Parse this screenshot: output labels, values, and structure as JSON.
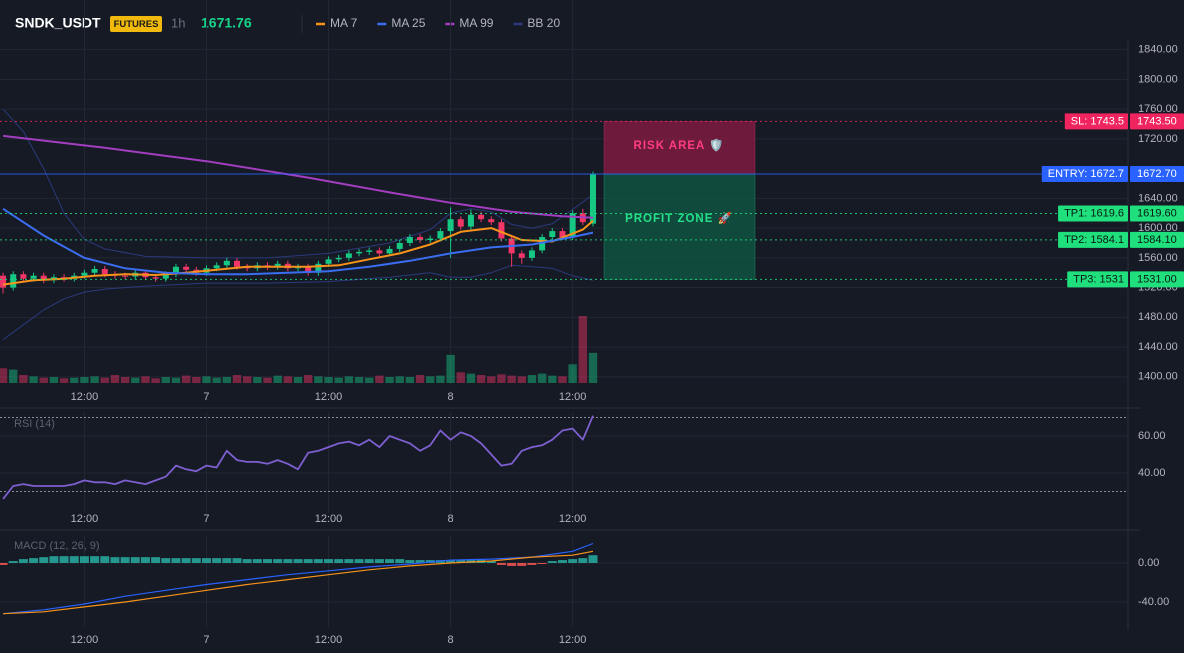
{
  "chart_data": [
    {
      "type": "candlestick",
      "title": "SNDK_USDT",
      "badge": "FUTURES",
      "interval": "1h",
      "last_price": 1671.76,
      "xlim": [
        -0.3,
        110.6
      ],
      "xticks": [
        {
          "value": 8,
          "label": "12:00"
        },
        {
          "value": 20,
          "label": "7"
        },
        {
          "value": 32,
          "label": "12:00"
        },
        {
          "value": 44,
          "label": "8"
        },
        {
          "value": 56,
          "label": "12:00"
        }
      ],
      "ylim": [
        1389,
        1853
      ],
      "yticks": [
        {
          "value": 1400,
          "label": "1400.00"
        },
        {
          "value": 1440,
          "label": "1440.00"
        },
        {
          "value": 1480,
          "label": "1480.00"
        },
        {
          "value": 1520,
          "label": "1520.00"
        },
        {
          "value": 1560,
          "label": "1560.00"
        },
        {
          "value": 1600,
          "label": "1600.00"
        },
        {
          "value": 1640,
          "label": "1640.00"
        },
        {
          "value": 1720,
          "label": "1720.00"
        },
        {
          "value": 1760,
          "label": "1760.00"
        },
        {
          "value": 1800,
          "label": "1800.00"
        },
        {
          "value": 1840,
          "label": "1840.00"
        }
      ],
      "up_color": "#17c784",
      "down_color": "#f23668",
      "open": [
        1536,
        1520,
        1538,
        1532,
        1536,
        1530,
        1534,
        1532,
        1536,
        1540,
        1545,
        1538,
        1536,
        1535,
        1540,
        1534,
        1532,
        1538,
        1548,
        1544,
        1540,
        1546,
        1550,
        1556,
        1548,
        1546,
        1550,
        1548,
        1552,
        1546,
        1548,
        1540,
        1552,
        1558,
        1560,
        1566,
        1568,
        1570,
        1566,
        1572,
        1580,
        1588,
        1584,
        1586,
        1596,
        1612,
        1602,
        1618,
        1612,
        1608,
        1586,
        1566,
        1560,
        1570,
        1588,
        1596,
        1588,
        1620,
        1606
      ],
      "high": [
        1540,
        1542,
        1542,
        1540,
        1540,
        1538,
        1538,
        1540,
        1544,
        1549,
        1549,
        1542,
        1540,
        1544,
        1544,
        1538,
        1542,
        1552,
        1552,
        1548,
        1550,
        1554,
        1560,
        1560,
        1552,
        1554,
        1554,
        1556,
        1556,
        1552,
        1552,
        1556,
        1562,
        1564,
        1570,
        1572,
        1574,
        1574,
        1576,
        1584,
        1592,
        1592,
        1590,
        1600,
        1628,
        1616,
        1625,
        1622,
        1616,
        1612,
        1590,
        1570,
        1574,
        1592,
        1600,
        1600,
        1624,
        1626,
        1676
      ],
      "low": [
        1512,
        1516,
        1528,
        1528,
        1526,
        1526,
        1528,
        1528,
        1532,
        1536,
        1534,
        1532,
        1531,
        1531,
        1530,
        1528,
        1528,
        1534,
        1540,
        1536,
        1536,
        1542,
        1546,
        1544,
        1542,
        1542,
        1544,
        1544,
        1542,
        1542,
        1536,
        1536,
        1548,
        1554,
        1556,
        1562,
        1564,
        1562,
        1562,
        1568,
        1576,
        1580,
        1580,
        1582,
        1560,
        1598,
        1598,
        1608,
        1604,
        1582,
        1548,
        1552,
        1556,
        1566,
        1584,
        1584,
        1584,
        1604,
        1602
      ],
      "close": [
        1520,
        1538,
        1532,
        1536,
        1530,
        1534,
        1532,
        1536,
        1540,
        1545,
        1538,
        1536,
        1535,
        1540,
        1534,
        1532,
        1538,
        1548,
        1544,
        1540,
        1546,
        1550,
        1556,
        1548,
        1546,
        1550,
        1548,
        1552,
        1546,
        1548,
        1540,
        1552,
        1558,
        1560,
        1566,
        1568,
        1570,
        1566,
        1572,
        1580,
        1588,
        1584,
        1586,
        1596,
        1612,
        1602,
        1618,
        1612,
        1608,
        1586,
        1566,
        1560,
        1570,
        1588,
        1596,
        1588,
        1620,
        1608,
        1672.7
      ],
      "volume": [
        22,
        20,
        12,
        10,
        8,
        9,
        7,
        8,
        9,
        10,
        8,
        12,
        9,
        8,
        10,
        7,
        9,
        8,
        11,
        9,
        10,
        8,
        9,
        12,
        10,
        9,
        8,
        11,
        10,
        9,
        12,
        10,
        9,
        8,
        10,
        9,
        8,
        11,
        9,
        10,
        9,
        12,
        10,
        11,
        42,
        16,
        14,
        12,
        10,
        13,
        11,
        10,
        12,
        14,
        11,
        10,
        28,
        100,
        45
      ],
      "series": [
        {
          "name": "MA 7",
          "color": "#f7931a",
          "x": [
            0,
            3,
            6,
            9,
            12,
            15,
            18,
            21,
            24,
            27,
            30,
            33,
            36,
            39,
            42,
            45,
            48,
            51,
            54,
            57,
            58
          ],
          "values": [
            1524,
            1530,
            1532,
            1536,
            1538,
            1537,
            1540,
            1544,
            1548,
            1548,
            1548,
            1550,
            1558,
            1566,
            1578,
            1595,
            1600,
            1584,
            1582,
            1598,
            1610
          ]
        },
        {
          "name": "MA 25",
          "color": "#3a6df0",
          "x": [
            0,
            4,
            8,
            12,
            16,
            20,
            24,
            28,
            32,
            36,
            40,
            44,
            48,
            52,
            56,
            58
          ],
          "values": [
            1626,
            1590,
            1560,
            1546,
            1540,
            1538,
            1538,
            1540,
            1542,
            1548,
            1556,
            1566,
            1574,
            1578,
            1588,
            1594
          ]
        },
        {
          "name": "MA 99",
          "color": "#a23ebf",
          "x": [
            0,
            10,
            20,
            30,
            38,
            44,
            50,
            55,
            58
          ],
          "values": [
            1724,
            1708,
            1690,
            1668,
            1648,
            1634,
            1622,
            1616,
            1614
          ]
        },
        {
          "name": "BB 20",
          "color": "#2b3a7c",
          "x": [
            0,
            2,
            4,
            6,
            8,
            10,
            14,
            20,
            26,
            32,
            38,
            42,
            44,
            46,
            48,
            50,
            52,
            54,
            56,
            58
          ],
          "upper": [
            1760,
            1730,
            1680,
            1620,
            1585,
            1572,
            1562,
            1560,
            1560,
            1566,
            1580,
            1598,
            1620,
            1626,
            1622,
            1605,
            1600,
            1606,
            1625,
            1645
          ],
          "lower": [
            1450,
            1470,
            1490,
            1505,
            1514,
            1518,
            1522,
            1526,
            1526,
            1528,
            1534,
            1540,
            1534,
            1534,
            1540,
            1550,
            1548,
            1546,
            1536,
            1530
          ]
        }
      ],
      "levels": [
        {
          "label": "SL: 1743.5",
          "value": 1743.5,
          "value_label": "1743.50",
          "color": "#f0245e",
          "text_color": "#ffffff",
          "dashed": true
        },
        {
          "label": "ENTRY: 1672.7",
          "value": 1672.7,
          "value_label": "1672.70",
          "color": "#2962ff",
          "text_color": "#ffffff",
          "dashed": false
        },
        {
          "label": "TP1: 1619.6",
          "value": 1619.6,
          "value_label": "1619.60",
          "color": "#1fe07c",
          "text_color": "#0b1a12",
          "dashed": true
        },
        {
          "label": "TP2: 1584.1",
          "value": 1584.1,
          "value_label": "1584.10",
          "color": "#1fe07c",
          "text_color": "#0b1a12",
          "dashed": true
        },
        {
          "label": "TP3: 1531",
          "value": 1531,
          "value_label": "1531.00",
          "color": "#1fe07c",
          "text_color": "#0b1a12",
          "dashed": true
        }
      ],
      "zones": [
        {
          "label": "RISK AREA 🛡️",
          "from": 1743.5,
          "to": 1672.7,
          "color": "#8c1a44",
          "text_color": "#ff3d7f"
        },
        {
          "label": "PROFIT ZONE 🚀",
          "from": 1672.7,
          "to": 1531,
          "color": "#0f5a44",
          "text_color": "#24e08a"
        }
      ]
    },
    {
      "type": "line",
      "title": "RSI (14)",
      "color": "#7e5fd0",
      "xlim": [
        -0.3,
        110.6
      ],
      "xticks": [
        {
          "value": 8,
          "label": "12:00"
        },
        {
          "value": 20,
          "label": "7"
        },
        {
          "value": 32,
          "label": "12:00"
        },
        {
          "value": 44,
          "label": "8"
        },
        {
          "value": 56,
          "label": "12:00"
        }
      ],
      "ylim": [
        18.4,
        73
      ],
      "yticks": [
        {
          "value": 40,
          "label": "40.00"
        },
        {
          "value": 60,
          "label": "60.00"
        }
      ],
      "levels": [
        70,
        30
      ],
      "values": [
        26,
        33,
        34,
        33,
        33,
        33,
        33,
        34,
        36,
        35,
        35,
        34,
        36,
        35,
        34,
        36,
        38,
        44,
        42,
        41,
        44,
        43,
        52,
        47,
        46,
        46,
        45,
        47,
        45,
        42,
        51,
        52,
        54,
        56,
        57,
        55,
        58,
        54,
        60,
        58,
        56,
        52,
        55,
        63,
        58,
        62,
        60,
        56,
        50,
        44,
        45,
        52,
        54,
        55,
        58,
        63,
        64,
        58,
        71
      ]
    },
    {
      "type": "bar",
      "title": "MACD (12, 26, 9)",
      "up_color": "#26a69a",
      "down_color": "#ef5350",
      "xlim": [
        -0.3,
        110.6
      ],
      "xticks": [
        {
          "value": 8,
          "label": "12:00"
        },
        {
          "value": 20,
          "label": "7"
        },
        {
          "value": 32,
          "label": "12:00"
        },
        {
          "value": 44,
          "label": "8"
        },
        {
          "value": 56,
          "label": "12:00"
        }
      ],
      "ylim": [
        -65.6,
        28.7
      ],
      "yticks": [
        {
          "value": 0,
          "label": "0.00"
        },
        {
          "value": -40,
          "label": "-40.00"
        }
      ],
      "values": [
        -2,
        2,
        4,
        5,
        6,
        7,
        7,
        7,
        7,
        7,
        7,
        6,
        6,
        6,
        6,
        6,
        5,
        5,
        5,
        5,
        5,
        5,
        5,
        5,
        4,
        4,
        4,
        4,
        4,
        4,
        4,
        4,
        4,
        4,
        4,
        4,
        4,
        4,
        4,
        4,
        3,
        3,
        3,
        3,
        3,
        3,
        3,
        3,
        2,
        -2,
        -3,
        -3,
        -2,
        -1,
        2,
        3,
        4,
        5,
        8
      ],
      "series": [
        {
          "color": "#2962ff",
          "x": [
            0,
            4,
            8,
            12,
            16,
            20,
            24,
            28,
            32,
            36,
            40,
            44,
            48,
            52,
            56,
            58
          ],
          "values": [
            -52,
            -48,
            -42,
            -34,
            -28,
            -22,
            -17,
            -12,
            -8,
            -4,
            -1,
            3,
            4,
            6,
            12,
            20
          ]
        },
        {
          "color": "#f7931a",
          "x": [
            0,
            4,
            8,
            12,
            16,
            20,
            24,
            28,
            32,
            36,
            40,
            44,
            48,
            52,
            56,
            58
          ],
          "values": [
            -52,
            -50,
            -45,
            -40,
            -34,
            -28,
            -22,
            -17,
            -12,
            -7,
            -3,
            0,
            2,
            6,
            8,
            12
          ]
        }
      ]
    }
  ]
}
